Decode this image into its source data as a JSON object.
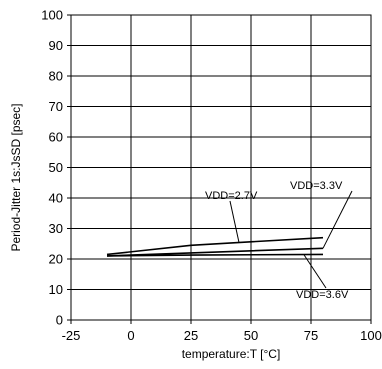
{
  "chart_data": {
    "type": "line",
    "xlabel": "temperature:T [°C]",
    "ylabel": "Period-Jitter 1s:JsSD [psec]",
    "xlim": [
      -25,
      100
    ],
    "ylim": [
      0,
      100
    ],
    "x_ticks": [
      -25,
      0,
      25,
      50,
      75,
      100
    ],
    "y_ticks": [
      0,
      10,
      20,
      30,
      40,
      50,
      60,
      70,
      80,
      90,
      100
    ],
    "x_tick_labels": [
      "-25",
      "0",
      "25",
      "50",
      "75",
      "100"
    ],
    "y_tick_labels": [
      "0",
      "10",
      "20",
      "30",
      "40",
      "50",
      "60",
      "70",
      "80",
      "90",
      "100"
    ],
    "grid": true,
    "legend": "none",
    "series": [
      {
        "name": "VDD=2.7V",
        "x": [
          -10,
          25,
          80
        ],
        "y": [
          21.5,
          24.5,
          27.0
        ]
      },
      {
        "name": "VDD=3.3V",
        "x": [
          -10,
          25,
          80
        ],
        "y": [
          21.0,
          22.0,
          23.5
        ]
      },
      {
        "name": "VDD=3.6V",
        "x": [
          -10,
          25,
          80
        ],
        "y": [
          21.0,
          21.3,
          21.5
        ]
      }
    ],
    "annotations": [
      {
        "text": "VDD=2.7V",
        "series": 0
      },
      {
        "text": "VDD=3.3V",
        "series": 1
      },
      {
        "text": "VDD=3.6V",
        "series": 2
      }
    ]
  }
}
